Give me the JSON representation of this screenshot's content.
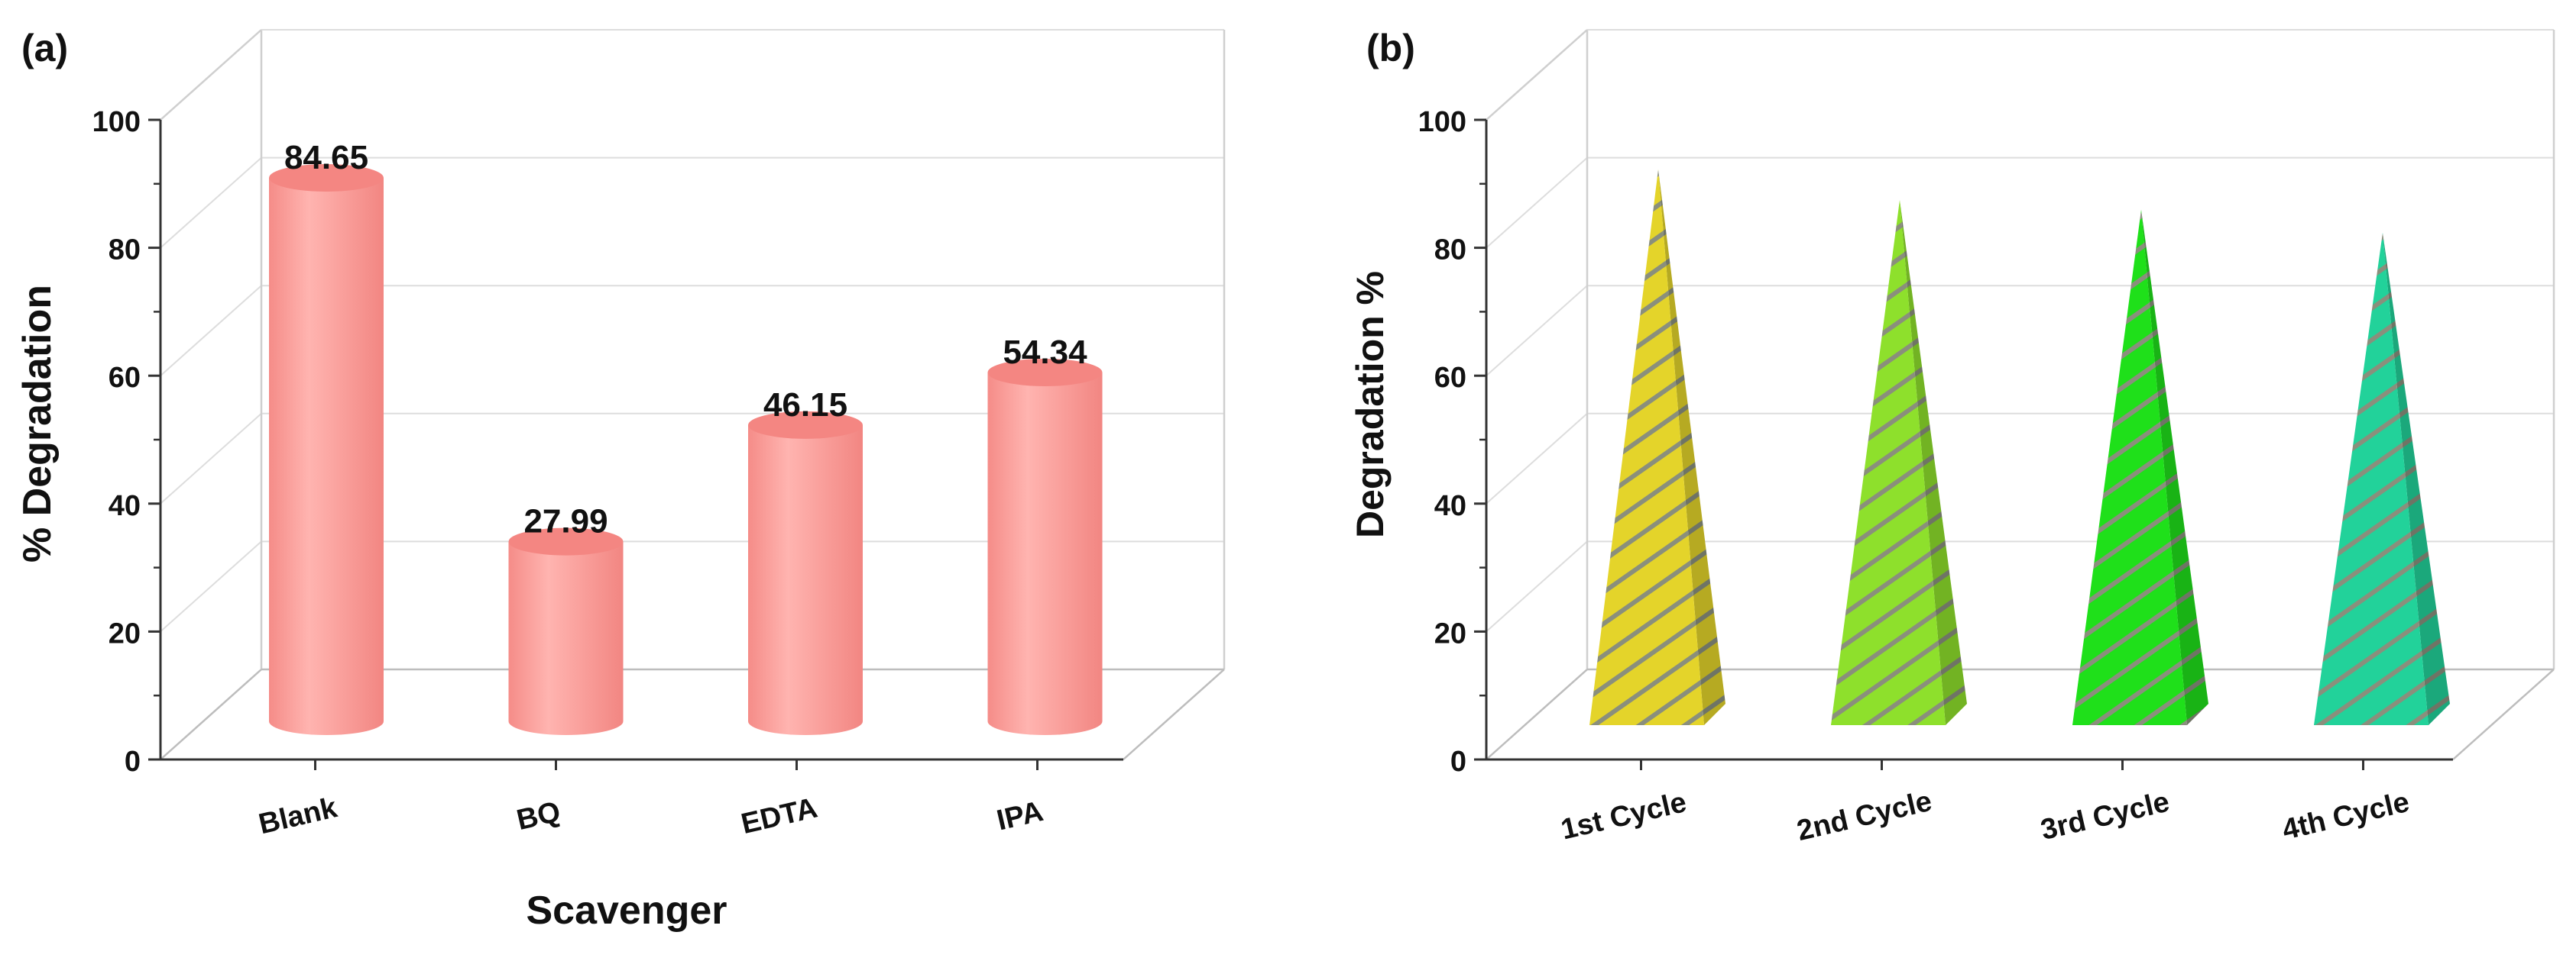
{
  "chart_data": [
    {
      "panel_label": "(a)",
      "type": "bar",
      "bar_shape": "cylinder",
      "title": "",
      "xlabel": "Scavenger",
      "ylabel": "% Degradation",
      "categories": [
        "Blank",
        "BQ",
        "EDTA",
        "IPA"
      ],
      "values": [
        84.65,
        27.99,
        46.15,
        54.34
      ],
      "data_labels": [
        "84.65",
        "27.99",
        "46.15",
        "54.34"
      ],
      "yticks": [
        "0",
        "20",
        "40",
        "60",
        "80",
        "100"
      ],
      "ylim": [
        0,
        100
      ],
      "grid": true,
      "color": "#f79390"
    },
    {
      "panel_label": "(b)",
      "type": "bar",
      "bar_shape": "pyramid",
      "title": "",
      "xlabel": "",
      "ylabel": "Degradation %",
      "categories": [
        "1st Cycle",
        "2nd Cycle",
        "3rd Cycle",
        "4th Cycle"
      ],
      "values": [
        84.65,
        80,
        78.5,
        75
      ],
      "yticks": [
        "0",
        "20",
        "40",
        "60",
        "80",
        "100"
      ],
      "ylim": [
        0,
        100
      ],
      "grid": true,
      "colors": [
        "#e4d42a",
        "#8ee02c",
        "#1fe01a",
        "#22d29a"
      ]
    }
  ]
}
